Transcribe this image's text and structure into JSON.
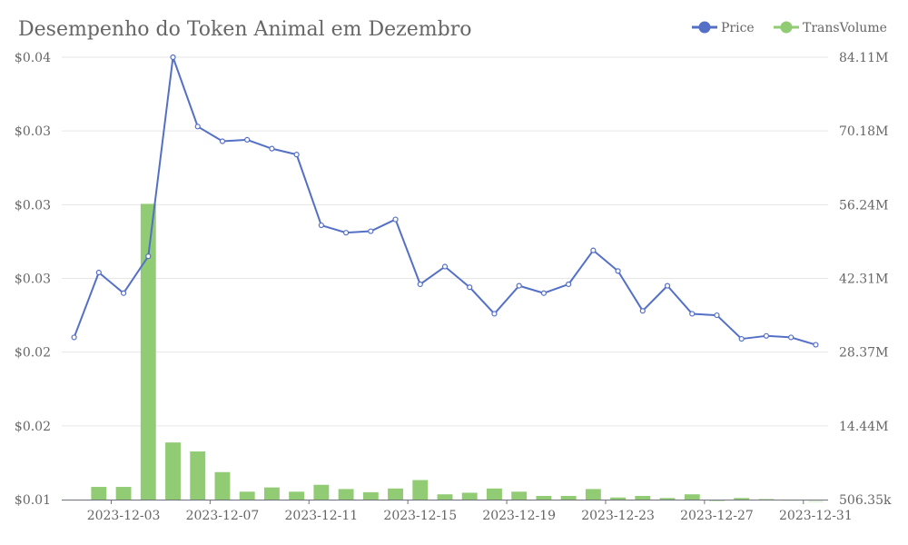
{
  "chart_data": {
    "type": "bar+line",
    "title": "Desempenho do Token Animal em Dezembro",
    "legend_position": "top-right",
    "colors": {
      "price": "#5470c6",
      "volume": "#91cc75"
    },
    "x": [
      "2023-12-01",
      "2023-12-02",
      "2023-12-03",
      "2023-12-04",
      "2023-12-05",
      "2023-12-06",
      "2023-12-07",
      "2023-12-08",
      "2023-12-09",
      "2023-12-10",
      "2023-12-11",
      "2023-12-12",
      "2023-12-13",
      "2023-12-14",
      "2023-12-15",
      "2023-12-16",
      "2023-12-17",
      "2023-12-18",
      "2023-12-19",
      "2023-12-20",
      "2023-12-21",
      "2023-12-22",
      "2023-12-23",
      "2023-12-24",
      "2023-12-25",
      "2023-12-26",
      "2023-12-27",
      "2023-12-28",
      "2023-12-29",
      "2023-12-30",
      "2023-12-31"
    ],
    "x_tick_labels": [
      "2023-12-03",
      "2023-12-07",
      "2023-12-11",
      "2023-12-15",
      "2023-12-19",
      "2023-12-23",
      "2023-12-27",
      "2023-12-31"
    ],
    "y_left": {
      "ticks": [
        "$0.01",
        "$0.02",
        "$0.02",
        "$0.03",
        "$0.03",
        "$0.03",
        "$0.04"
      ],
      "min": 0.01,
      "max": 0.04
    },
    "y_right": {
      "ticks": [
        "506.35k",
        "14.44M",
        "28.37M",
        "42.31M",
        "56.24M",
        "70.18M",
        "84.11M"
      ],
      "min": 506350,
      "max": 84110000
    },
    "series": [
      {
        "name": "Price",
        "axis": "left",
        "kind": "line",
        "values": [
          0.021,
          0.0254,
          0.024,
          0.0265,
          0.04,
          0.0353,
          0.0343,
          0.0344,
          0.0338,
          0.0334,
          0.0286,
          0.0281,
          0.0282,
          0.029,
          0.0246,
          0.0258,
          0.0244,
          0.0226,
          0.0245,
          0.024,
          0.0246,
          0.0269,
          0.0255,
          0.0228,
          0.0245,
          0.0226,
          0.0225,
          0.0209,
          0.0211,
          0.021,
          0.0205
        ]
      },
      {
        "name": "TransVolume",
        "axis": "right",
        "kind": "bar",
        "values": [
          null,
          2900000,
          2900000,
          56400000,
          11300000,
          9600000,
          5700000,
          2000000,
          2800000,
          2000000,
          3300000,
          2500000,
          1900000,
          2600000,
          4200000,
          1500000,
          1800000,
          2600000,
          2000000,
          1200000,
          1200000,
          2500000,
          900000,
          1200000,
          800000,
          1500000,
          300000,
          800000,
          600000,
          400000,
          200000
        ]
      }
    ]
  }
}
